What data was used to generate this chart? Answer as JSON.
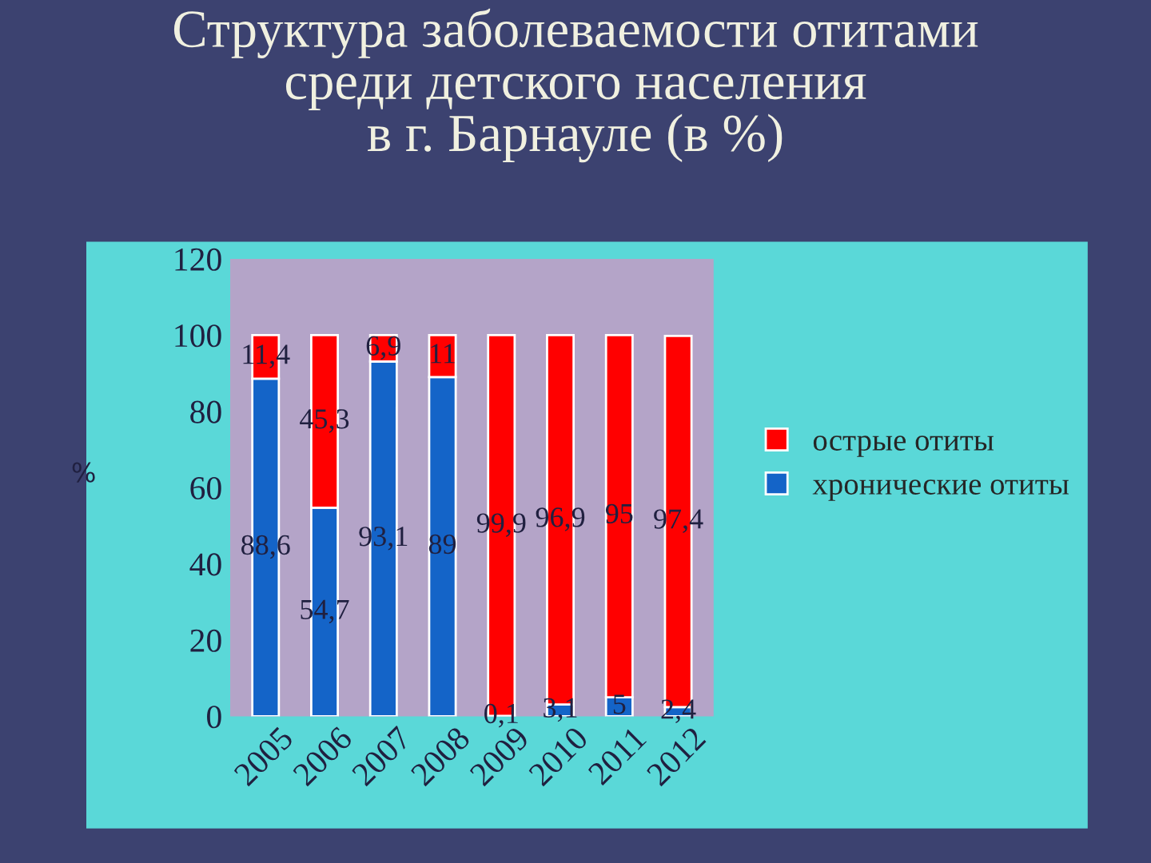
{
  "chart_data": {
    "type": "bar",
    "title": "Структура заболеваемости отитами\nсреди детского населения\nв г. Барнауле (в %)",
    "ylabel": "%",
    "categories": [
      "2005",
      "2006",
      "2007",
      "2008",
      "2009",
      "2010",
      "2011",
      "2012"
    ],
    "stacked": true,
    "series": [
      {
        "name": "хронические отиты",
        "color": "#1464c8",
        "values": [
          88.6,
          54.7,
          93.1,
          89,
          0.1,
          3.1,
          5,
          2.4
        ],
        "value_labels": [
          "88,6",
          "54,7",
          "93,1",
          "89",
          "0,1",
          "3,1",
          "5",
          "2,4"
        ]
      },
      {
        "name": "острые отиты",
        "color": "#ff0000",
        "values": [
          11.4,
          45.3,
          6.9,
          11,
          99.9,
          96.9,
          95,
          97.4
        ],
        "value_labels": [
          "11,4",
          "45,3",
          "6,9",
          "11",
          "99,9",
          "96,9",
          "95",
          "97,4"
        ]
      }
    ],
    "ylim": [
      0,
      120
    ],
    "yticks": [
      0,
      20,
      40,
      60,
      80,
      100,
      120
    ],
    "grid": false,
    "legend": "right"
  }
}
